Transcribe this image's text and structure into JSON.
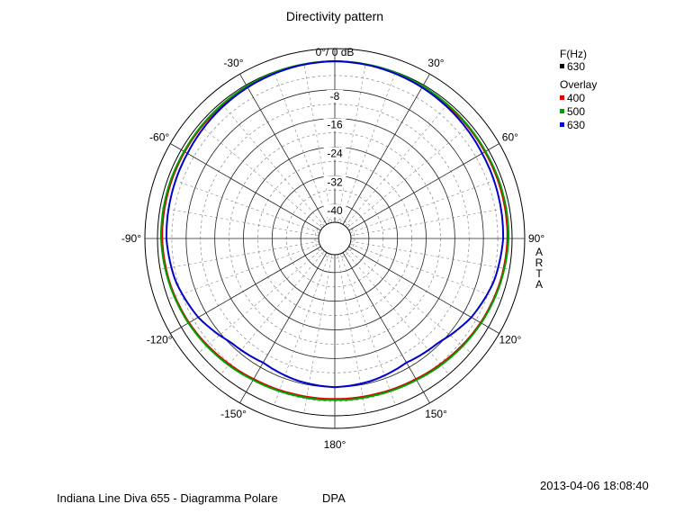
{
  "chart_data": {
    "type": "polar",
    "title": "Directivity pattern",
    "radial_unit": "dB",
    "radial_ticks": [
      {
        "value": 0,
        "label": "0°/ 0 dB"
      },
      {
        "value": -8,
        "label": "-8"
      },
      {
        "value": -16,
        "label": "-16"
      },
      {
        "value": -24,
        "label": "-24"
      },
      {
        "value": -32,
        "label": "-32"
      },
      {
        "value": -40,
        "label": "-40"
      }
    ],
    "radial_range": [
      -45,
      0
    ],
    "angle_labels": [
      {
        "angle": -30,
        "label": "-30°"
      },
      {
        "angle": 30,
        "label": "30°"
      },
      {
        "angle": -60,
        "label": "-60°"
      },
      {
        "angle": 60,
        "label": "60°"
      },
      {
        "angle": -90,
        "label": "-90°"
      },
      {
        "angle": 90,
        "label": "90°"
      },
      {
        "angle": -120,
        "label": "-120°"
      },
      {
        "angle": 120,
        "label": "120°"
      },
      {
        "angle": -150,
        "label": "-150°"
      },
      {
        "angle": 150,
        "label": "150°"
      },
      {
        "angle": 180,
        "label": "180°"
      }
    ],
    "grid": true,
    "angles": [
      0,
      15,
      30,
      45,
      60,
      75,
      90,
      105,
      120,
      135,
      150,
      165,
      180
    ],
    "series": [
      {
        "name": "400",
        "color": "#e00000",
        "values": [
          0,
          -0.2,
          -0.6,
          -0.9,
          -1.1,
          -1.2,
          -1.3,
          -1.8,
          -2.5,
          -3.4,
          -4.2,
          -4.6,
          -4.7
        ]
      },
      {
        "name": "500",
        "color": "#00a000",
        "values": [
          0,
          -0.1,
          -0.4,
          -0.7,
          -0.9,
          -0.9,
          -1.0,
          -1.6,
          -2.3,
          -3.1,
          -3.9,
          -4.3,
          -4.4
        ]
      },
      {
        "name": "630",
        "color": "#0000cc",
        "values": [
          0,
          -0.3,
          -0.8,
          -1.4,
          -2.0,
          -2.3,
          -2.5,
          -3.5,
          -5.5,
          -8.5,
          -9.5,
          -8.5,
          -8.0
        ]
      }
    ],
    "legend": {
      "heading": "F(Hz)",
      "current": {
        "label": "630",
        "color": "#000000"
      },
      "overlay_heading": "Overlay",
      "placement": "right"
    }
  },
  "side_label": [
    "A",
    "R",
    "T",
    "A"
  ],
  "timestamp": "2013-04-06  18:08:40",
  "footer_left": "Indiana Line Diva 655 - Diagramma Polare",
  "footer_right": "DPA"
}
